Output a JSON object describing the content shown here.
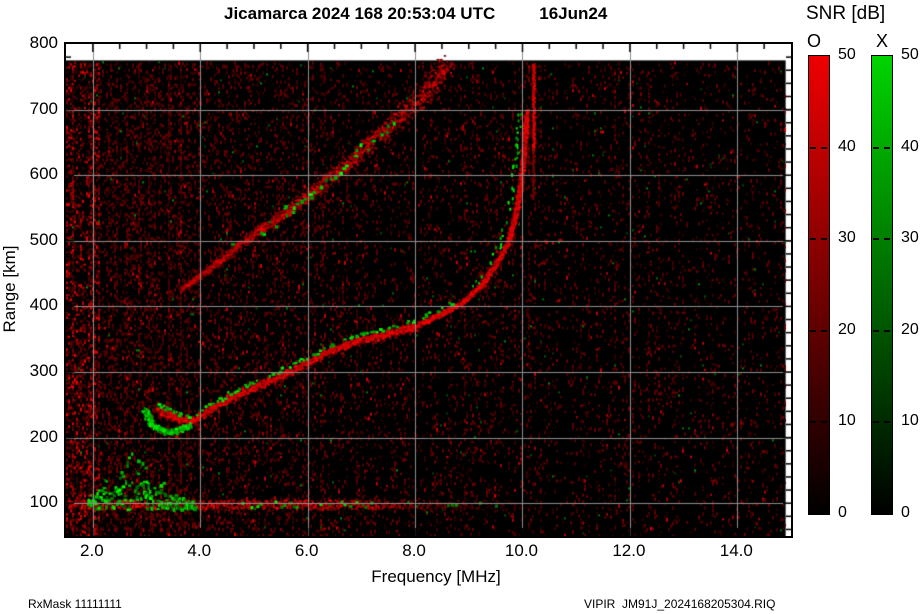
{
  "title": {
    "main": "Jicamarca 2024 168 20:53:04 UTC",
    "date": "16Jun24"
  },
  "footer": {
    "rx_mask": "RxMask 11111111",
    "file": "VIPIR  JM91J_2024168205304.RIQ"
  },
  "axes": {
    "x": {
      "label": "Frequency [MHz]",
      "min": 1.5,
      "max": 15.0,
      "ticks": [
        2.0,
        4.0,
        6.0,
        8.0,
        10.0,
        12.0,
        14.0
      ],
      "tick_labels": [
        "2.0",
        "4.0",
        "6.0",
        "8.0",
        "10.0",
        "12.0",
        "14.0"
      ],
      "minor_step": 0.5
    },
    "y": {
      "label": "Range [km]",
      "min": 50,
      "max": 800,
      "ticks": [
        800,
        700,
        600,
        500,
        400,
        300,
        200,
        100
      ],
      "tick_labels": [
        "800",
        "700",
        "600",
        "500",
        "400",
        "300",
        "200",
        "100"
      ],
      "minor_step": 20
    }
  },
  "colorbar": {
    "title": "SNR [dB]",
    "min": 0,
    "max": 50,
    "ticks": [
      50,
      40,
      30,
      20,
      10,
      0
    ],
    "tick_labels": [
      "50",
      "40",
      "30",
      "20",
      "10",
      "0"
    ],
    "bars": [
      {
        "label": "O",
        "top_color": "#ee0000",
        "bottom_color": "#000000"
      },
      {
        "label": "X",
        "top_color": "#00d400",
        "bottom_color": "#000000"
      }
    ]
  },
  "colors": {
    "page_bg": "#ffffff",
    "plot_bg": "#000000",
    "grid": "#8e8e8e",
    "o_mode": "#e60000",
    "x_mode": "#00cc00",
    "noise": "#550000"
  },
  "chart_data": {
    "type": "heatmap",
    "title": "Jicamarca 2024 168 20:53:04 UTC 16Jun24",
    "xlabel": "Frequency [MHz]",
    "ylabel": "Range [km]",
    "xlim": [
      1.5,
      15.0
    ],
    "ylim": [
      50,
      800
    ],
    "grid": true,
    "colorbar_label": "SNR [dB]",
    "colorbar_range": [
      0,
      50
    ],
    "data_extent": {
      "f_MHz": [
        1.5,
        14.9
      ],
      "range_km": [
        50,
        775
      ]
    },
    "critical_frequency_MHz": 10.1,
    "traces": {
      "f_region_main": [
        [
          3.2,
          243
        ],
        [
          3.55,
          232
        ],
        [
          3.85,
          226
        ],
        [
          4.15,
          243
        ],
        [
          4.55,
          262
        ],
        [
          5.1,
          282
        ],
        [
          5.7,
          304
        ],
        [
          6.3,
          330
        ],
        [
          6.85,
          347
        ],
        [
          7.4,
          358
        ],
        [
          7.95,
          370
        ],
        [
          8.5,
          391
        ],
        [
          8.9,
          409
        ],
        [
          9.25,
          436
        ],
        [
          9.5,
          466
        ],
        [
          9.72,
          500
        ],
        [
          9.85,
          538
        ],
        [
          9.93,
          575
        ],
        [
          10.0,
          622
        ],
        [
          10.04,
          668
        ],
        [
          10.06,
          700
        ]
      ],
      "hook_green": [
        [
          2.95,
          245
        ],
        [
          3.02,
          230
        ],
        [
          3.1,
          220
        ],
        [
          3.25,
          212
        ],
        [
          3.45,
          209
        ],
        [
          3.65,
          214
        ],
        [
          3.8,
          221
        ]
      ],
      "second_hop": [
        [
          3.65,
          428
        ],
        [
          4.2,
          462
        ],
        [
          4.8,
          500
        ],
        [
          5.4,
          535
        ],
        [
          5.9,
          565
        ],
        [
          6.5,
          602
        ],
        [
          7.0,
          640
        ],
        [
          7.6,
          682
        ],
        [
          8.15,
          726
        ],
        [
          8.6,
          772
        ]
      ],
      "x_mode_vertical": {
        "f": 10.19,
        "km_bright": [
          640,
          772
        ],
        "km_faint": [
          565,
          640
        ]
      },
      "e_region_band": {
        "km": 100,
        "f_span": [
          1.5,
          10.35
        ]
      },
      "e_region_green_cluster": {
        "f_span": [
          1.9,
          3.9
        ],
        "km_span": [
          90,
          175
        ],
        "peak_f": 2.75
      },
      "e_region_green_dashes": {
        "f_span": [
          4.6,
          7.3
        ],
        "km": 100
      }
    }
  }
}
